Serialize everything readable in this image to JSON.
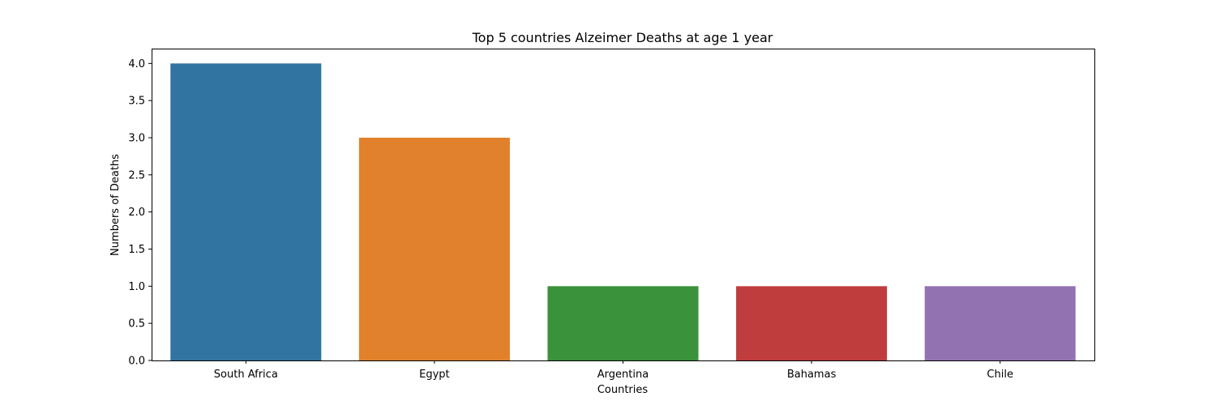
{
  "chart_data": {
    "type": "bar",
    "title": "Top 5 countries Alzeimer Deaths at age 1 year",
    "xlabel": "Countries",
    "ylabel": "Numbers of Deaths",
    "categories": [
      "South Africa",
      "Egypt",
      "Argentina",
      "Bahamas",
      "Chile"
    ],
    "values": [
      4,
      3,
      1,
      1,
      1
    ],
    "colors": [
      "#3274a1",
      "#e1812c",
      "#3a923a",
      "#c03d3e",
      "#9372b2"
    ],
    "ylim": [
      0,
      4.2
    ],
    "yticks": [
      "0.0",
      "0.5",
      "1.0",
      "1.5",
      "2.0",
      "2.5",
      "3.0",
      "3.5",
      "4.0"
    ],
    "grid": false,
    "legend": "none"
  }
}
